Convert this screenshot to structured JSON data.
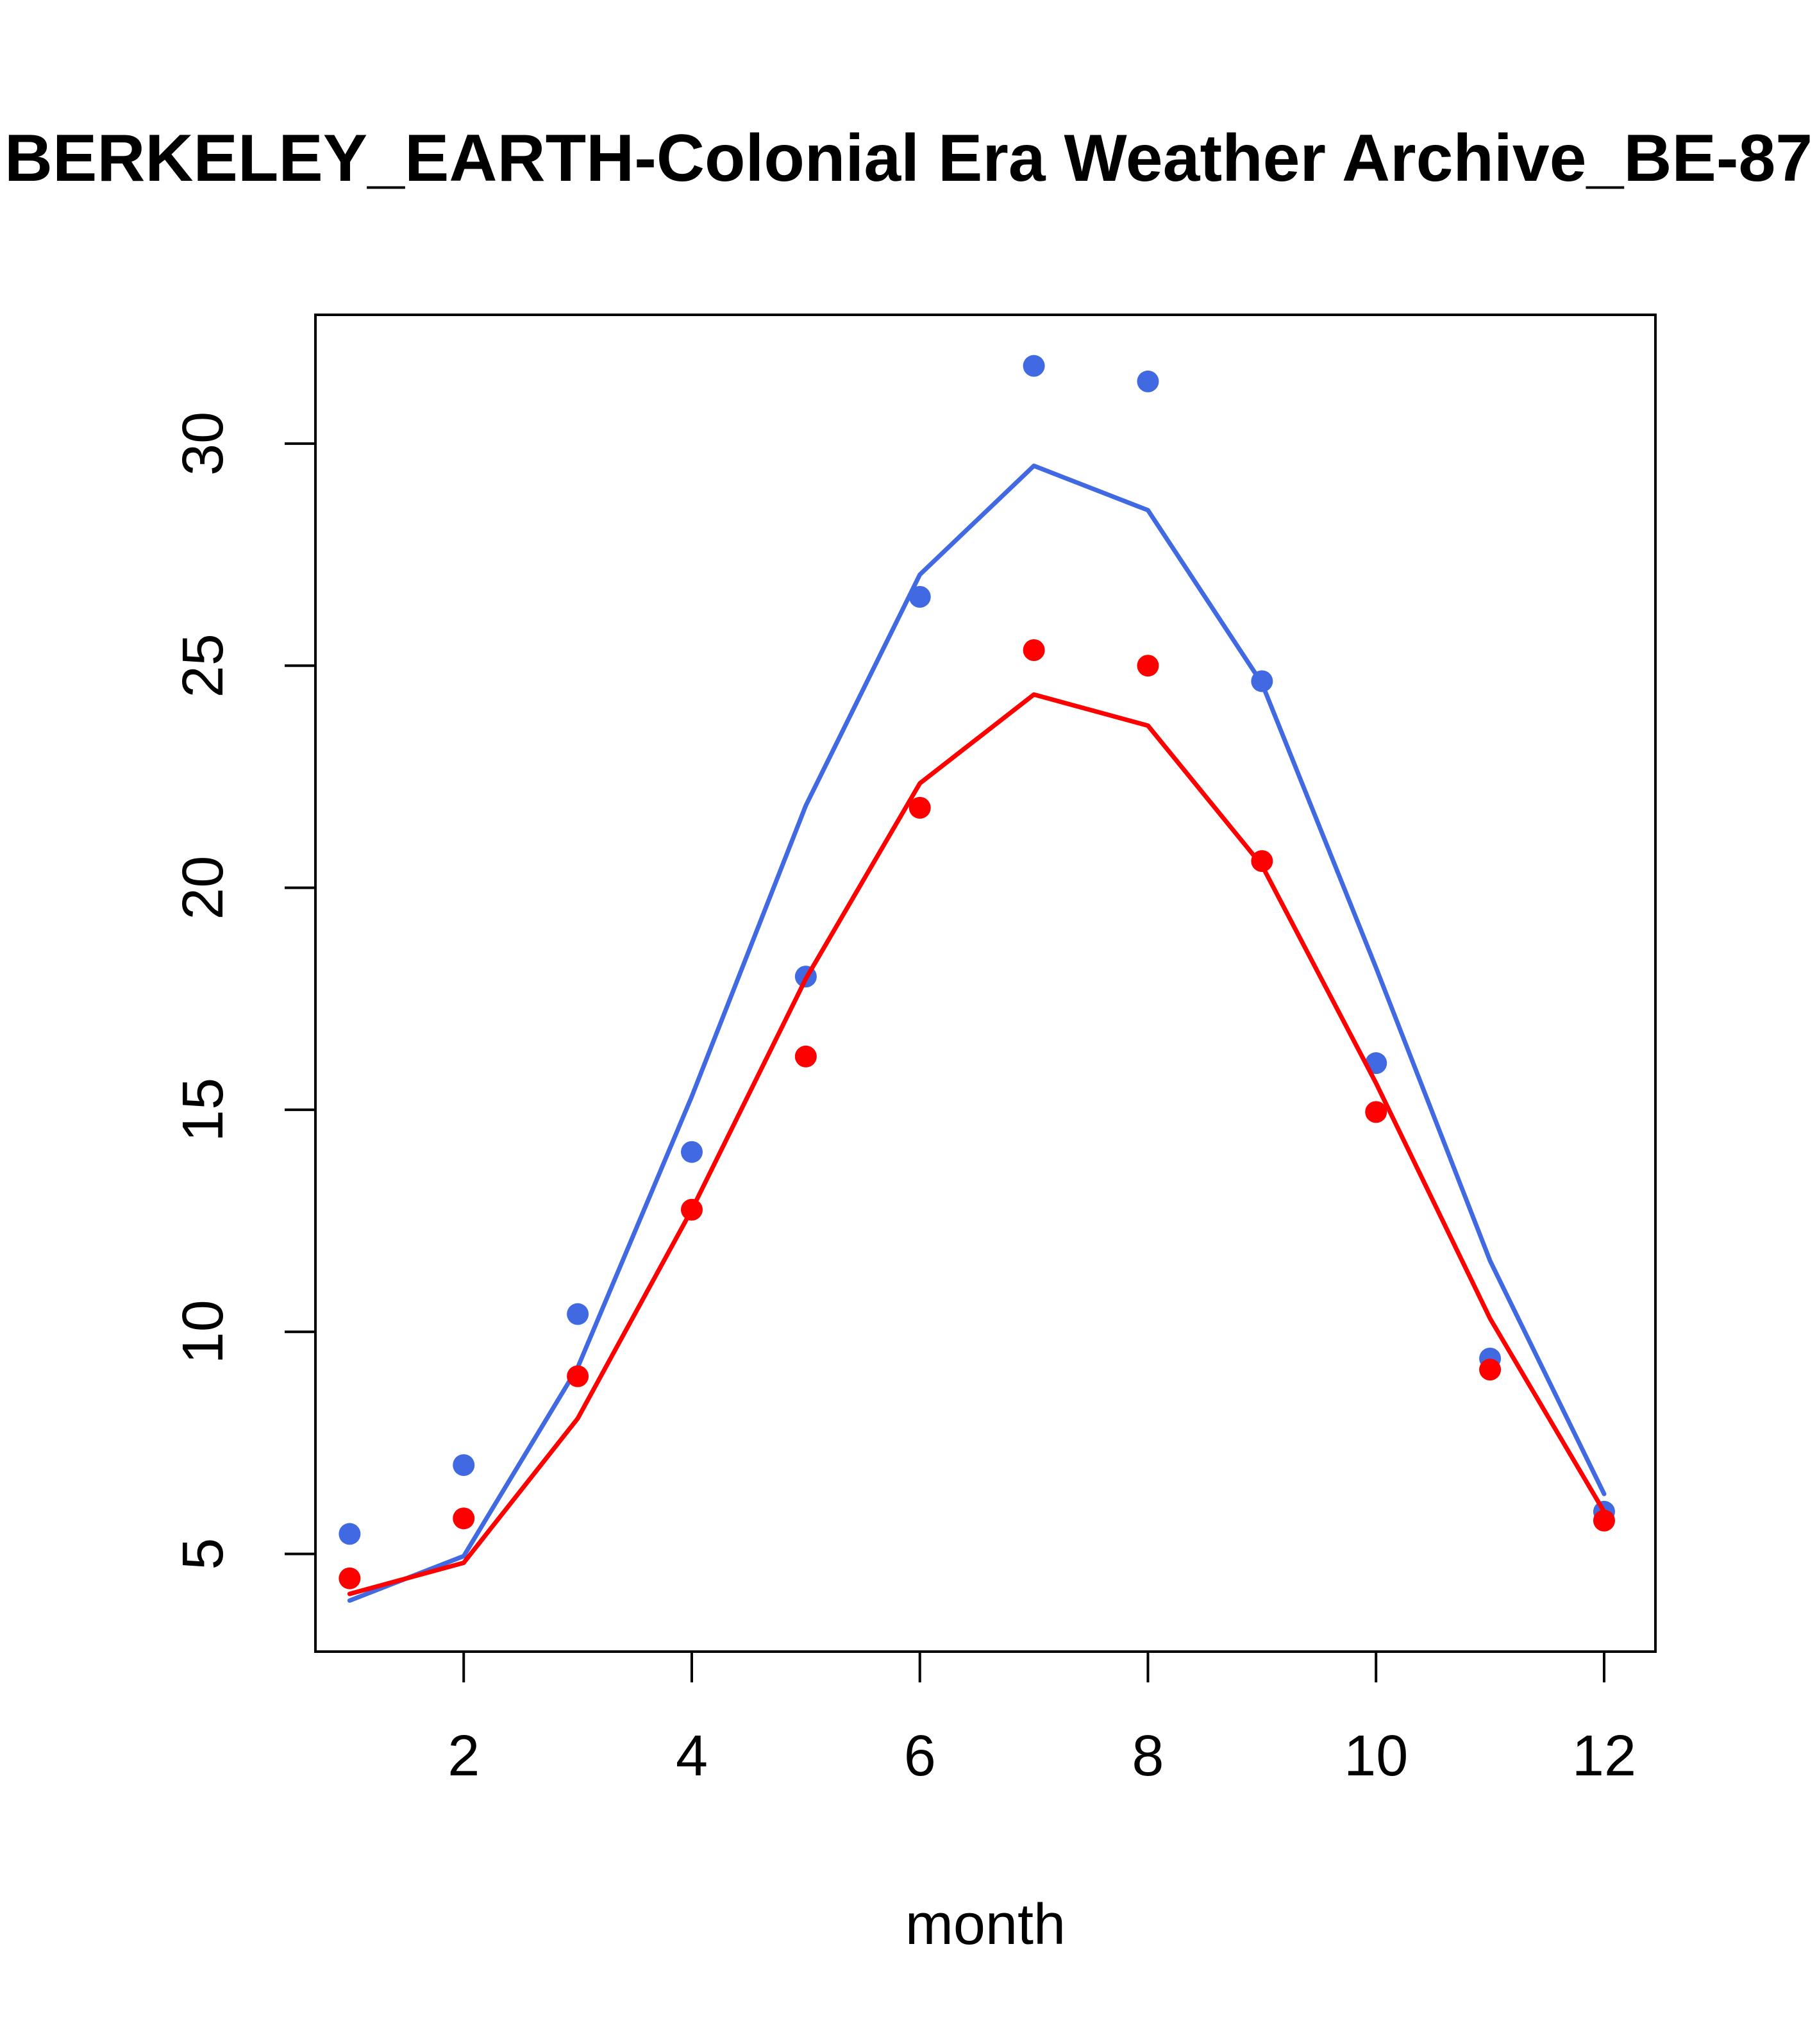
{
  "chart_data": {
    "type": "line",
    "title": "BERKELEY_EARTH-Colonial Era Weather Archive_BE-87",
    "xlabel": "month",
    "ylabel": "",
    "xlim": [
      0.7,
      12.45
    ],
    "ylim": [
      2.8,
      32.9
    ],
    "x_ticks": [
      2,
      4,
      6,
      8,
      10,
      12
    ],
    "y_ticks": [
      5,
      10,
      15,
      20,
      25,
      30
    ],
    "grid": false,
    "legend": "none",
    "x": [
      1,
      2,
      3,
      4,
      5,
      6,
      7,
      8,
      9,
      10,
      11,
      12
    ],
    "series": [
      {
        "color": "#4169E1",
        "points": [
          5.45,
          7.0,
          10.4,
          14.05,
          18.0,
          26.55,
          31.75,
          31.4,
          24.65,
          16.05,
          9.4,
          5.95
        ],
        "line": [
          3.95,
          4.95,
          9.2,
          15.3,
          21.85,
          27.05,
          29.5,
          28.5,
          24.6,
          18.2,
          11.6,
          6.35
        ]
      },
      {
        "color": "#FF0000",
        "points": [
          4.45,
          5.8,
          9.0,
          12.75,
          16.2,
          21.8,
          25.35,
          25.0,
          20.6,
          14.95,
          9.15,
          5.75
        ],
        "line": [
          4.1,
          4.8,
          8.05,
          12.75,
          17.95,
          22.35,
          24.35,
          23.65,
          20.5,
          15.6,
          10.3,
          5.95
        ]
      }
    ]
  }
}
